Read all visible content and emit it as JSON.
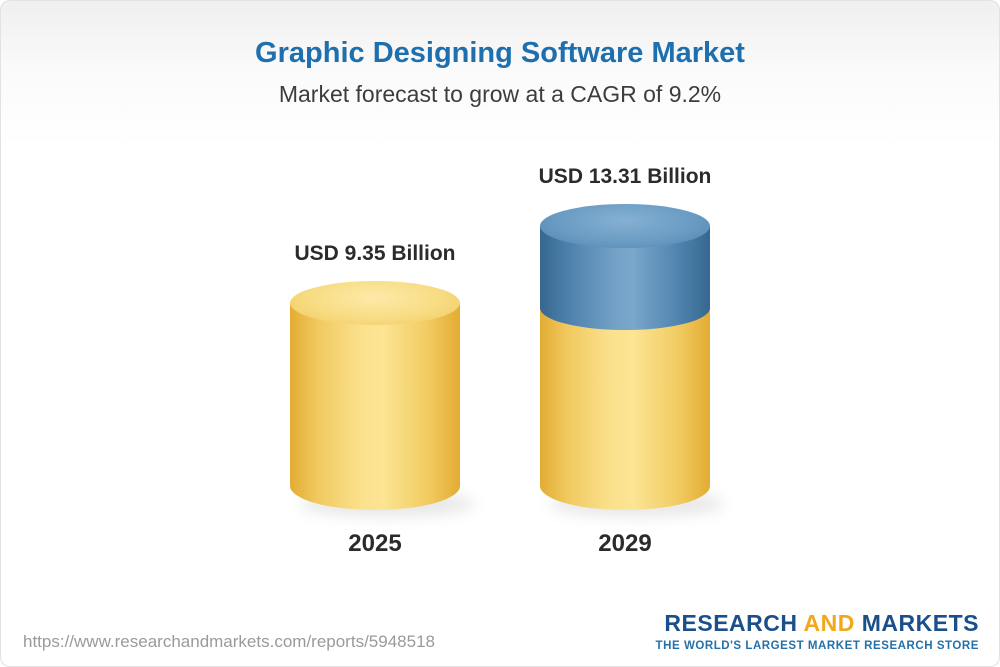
{
  "header": {
    "title": "Graphic Designing Software Market",
    "subtitle": "Market forecast to grow at a CAGR of 9.2%"
  },
  "chart_data": {
    "type": "bar",
    "title": "Graphic Designing Software Market",
    "subtitle": "Market forecast to grow at a CAGR of 9.2%",
    "cagr_percent": 9.2,
    "unit": "USD Billion",
    "categories": [
      "2025",
      "2029"
    ],
    "values": [
      9.35,
      13.31
    ],
    "value_labels": [
      "USD 9.35 Billion",
      "USD 13.31 Billion"
    ],
    "colors": {
      "bar_base": "#f5cf6a",
      "bar_growth_segment": "#5d90ba",
      "title": "#1e6fad"
    },
    "legend": false,
    "notes": "2029 bar drawn with yellow base equal to 2025 value and blue top segment representing growth"
  },
  "footer": {
    "url": "https://www.researchandmarkets.com/reports/5948518",
    "logo": {
      "research": "RESEARCH",
      "and": "AND",
      "markets": "MARKETS",
      "tagline": "THE WORLD'S LARGEST MARKET RESEARCH STORE"
    }
  }
}
